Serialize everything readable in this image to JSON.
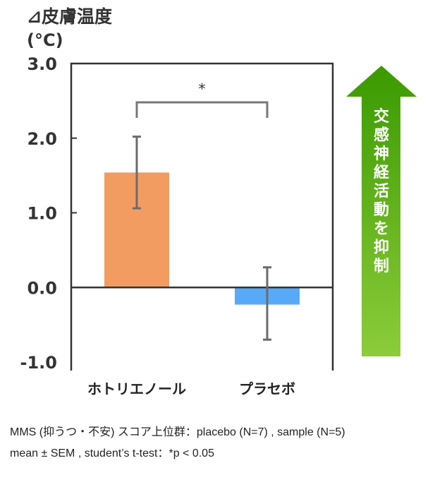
{
  "chart_data": {
    "type": "bar",
    "ylabel": "⊿皮膚温度",
    "yunit": "(°C)",
    "ylim": [
      -1.0,
      3.0
    ],
    "yticks": [
      "3.0",
      "2.0",
      "1.0",
      "0.0",
      "-1.0"
    ],
    "ytick_values": [
      3.0,
      2.0,
      1.0,
      0.0,
      -1.0
    ],
    "categories": [
      "ホトリエノール",
      "プラセボ"
    ],
    "values": [
      1.54,
      -0.23
    ],
    "error_upper": [
      2.02,
      0.27
    ],
    "error_lower": [
      1.06,
      -0.7
    ],
    "colors": [
      "#f39c62",
      "#58aaf8"
    ],
    "significance": {
      "label": "*",
      "between": [
        0,
        1
      ]
    },
    "grid": false,
    "arrow": {
      "label": "交感神経活動を抑制",
      "colors": [
        "#3a9a00",
        "#8ccc3a"
      ]
    }
  },
  "notes": {
    "line1": "MMS (抑うつ・不安) スコア上位群：placebo (N=7) , sample (N=5)",
    "line2": "mean ± SEM , student’s t-test：*p < 0.05"
  }
}
